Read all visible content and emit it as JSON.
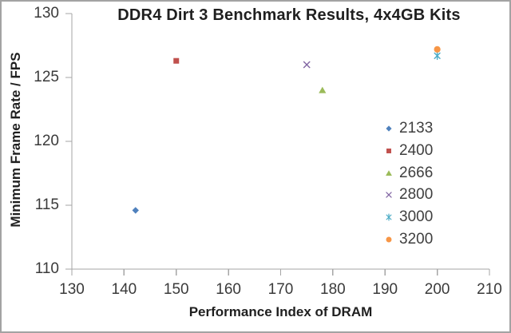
{
  "chart_data": {
    "type": "scatter",
    "title": "DDR4 Dirt 3 Benchmark Results, 4x4GB Kits",
    "xlabel": "Performance Index of DRAM",
    "ylabel": "Minimum Frame Rate / FPS",
    "xlim": [
      130,
      210
    ],
    "ylim": [
      110,
      130
    ],
    "xticks": [
      130,
      140,
      150,
      160,
      170,
      180,
      190,
      200,
      210
    ],
    "yticks": [
      110,
      115,
      120,
      125,
      130
    ],
    "grid": false,
    "legend_position": "inside-right",
    "axis_color": "#a6a6a6",
    "text_color": "#3a3a3a",
    "series": [
      {
        "name": "2133",
        "marker": "diamond",
        "color": "#4F81BD",
        "points": [
          [
            142.2,
            114.6
          ]
        ]
      },
      {
        "name": "2400",
        "marker": "square",
        "color": "#C0504D",
        "points": [
          [
            150.0,
            126.3
          ]
        ]
      },
      {
        "name": "2666",
        "marker": "triangle",
        "color": "#9BBB59",
        "points": [
          [
            178.0,
            124.0
          ]
        ]
      },
      {
        "name": "2800",
        "marker": "x",
        "color": "#8064A2",
        "points": [
          [
            175.0,
            126.0
          ]
        ]
      },
      {
        "name": "3000",
        "marker": "asterisk",
        "color": "#4BACC6",
        "points": [
          [
            200.0,
            126.7
          ]
        ]
      },
      {
        "name": "3200",
        "marker": "circle",
        "color": "#F79646",
        "points": [
          [
            200.0,
            127.2
          ]
        ]
      }
    ]
  }
}
